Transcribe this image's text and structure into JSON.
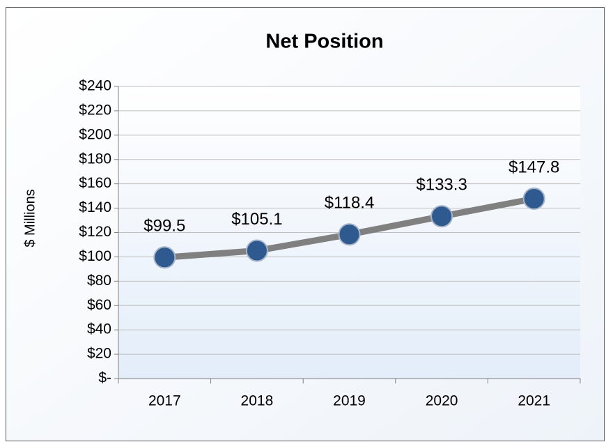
{
  "chart_data": {
    "type": "line",
    "title": "Net Position",
    "y_label": "$ Millions",
    "categories": [
      "2017",
      "2018",
      "2019",
      "2020",
      "2021"
    ],
    "series": [
      {
        "name": "Net Position",
        "color": "#808080",
        "marker_color": "#2e5a8f",
        "values": [
          99.5,
          105.1,
          118.4,
          133.3,
          147.8
        ],
        "value_labels": [
          "$99.5",
          "$105.1",
          "$118.4",
          "$133.3",
          "$147.8"
        ]
      }
    ],
    "ylim": [
      0,
      240
    ],
    "yticks": [
      {
        "value": 0,
        "label": "$-"
      },
      {
        "value": 20,
        "label": "$20"
      },
      {
        "value": 40,
        "label": "$40"
      },
      {
        "value": 60,
        "label": "$60"
      },
      {
        "value": 80,
        "label": "$80"
      },
      {
        "value": 100,
        "label": "$100"
      },
      {
        "value": 120,
        "label": "$120"
      },
      {
        "value": 140,
        "label": "$140"
      },
      {
        "value": 160,
        "label": "$160"
      },
      {
        "value": 180,
        "label": "$180"
      },
      {
        "value": 200,
        "label": "$200"
      },
      {
        "value": 220,
        "label": "$220"
      },
      {
        "value": 240,
        "label": "$240"
      }
    ],
    "grid": true
  }
}
